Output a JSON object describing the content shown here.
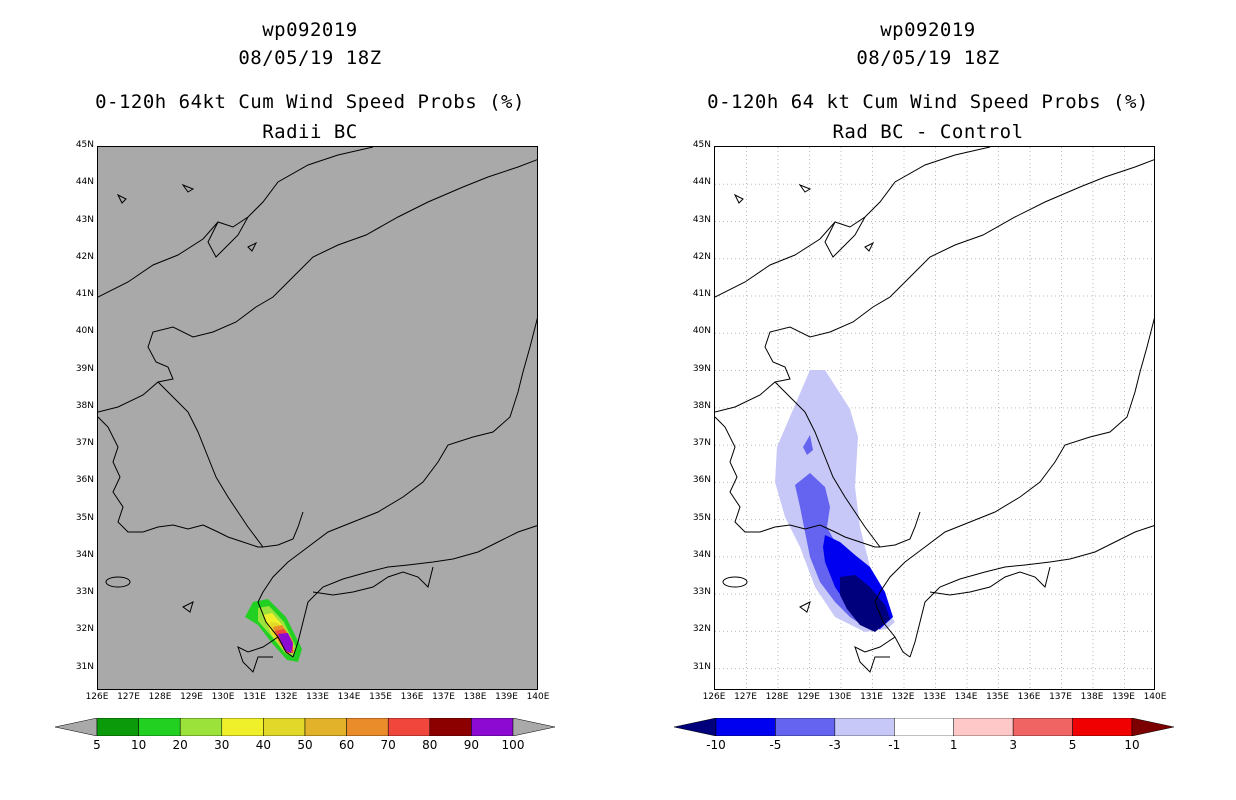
{
  "left_panel": {
    "storm_id": "wp092019",
    "datetime": "08/05/19 18Z",
    "product": "0-120h 64kt Cum Wind Speed Probs (%)",
    "subtitle": "Radii BC",
    "background_color": "#a9a9a9",
    "colorbar": {
      "labels": [
        "5",
        "10",
        "20",
        "30",
        "40",
        "50",
        "60",
        "70",
        "80",
        "90",
        "100"
      ],
      "colors": [
        "#0a9a0a",
        "#22d022",
        "#9be33a",
        "#f0f02a",
        "#e1d82a",
        "#e1b22a",
        "#ea8c2a",
        "#f0463c",
        "#8c0000",
        "#8c0ad2"
      ]
    }
  },
  "right_panel": {
    "storm_id": "wp092019",
    "datetime": "08/05/19 18Z",
    "product": "0-120h 64 kt Cum Wind Speed Probs (%)",
    "subtitle": "Rad BC - Control",
    "background_color": "#ffffff",
    "colorbar": {
      "labels": [
        "-10",
        "-5",
        "-3",
        "-1",
        "1",
        "3",
        "5",
        "10"
      ],
      "colors": [
        "#00007d",
        "#0000f0",
        "#6464f0",
        "#c8c8f8",
        "#ffffff",
        "#ffc8c8",
        "#f06464",
        "#f00000",
        "#7d0000"
      ]
    }
  },
  "axes": {
    "lat_labels": [
      "45N",
      "44N",
      "43N",
      "42N",
      "41N",
      "40N",
      "39N",
      "38N",
      "37N",
      "36N",
      "35N",
      "34N",
      "33N",
      "32N",
      "31N"
    ],
    "lon_labels": [
      "126E",
      "127E",
      "128E",
      "129E",
      "130E",
      "131E",
      "132E",
      "133E",
      "134E",
      "135E",
      "136E",
      "137E",
      "138E",
      "139E",
      "140E"
    ]
  }
}
